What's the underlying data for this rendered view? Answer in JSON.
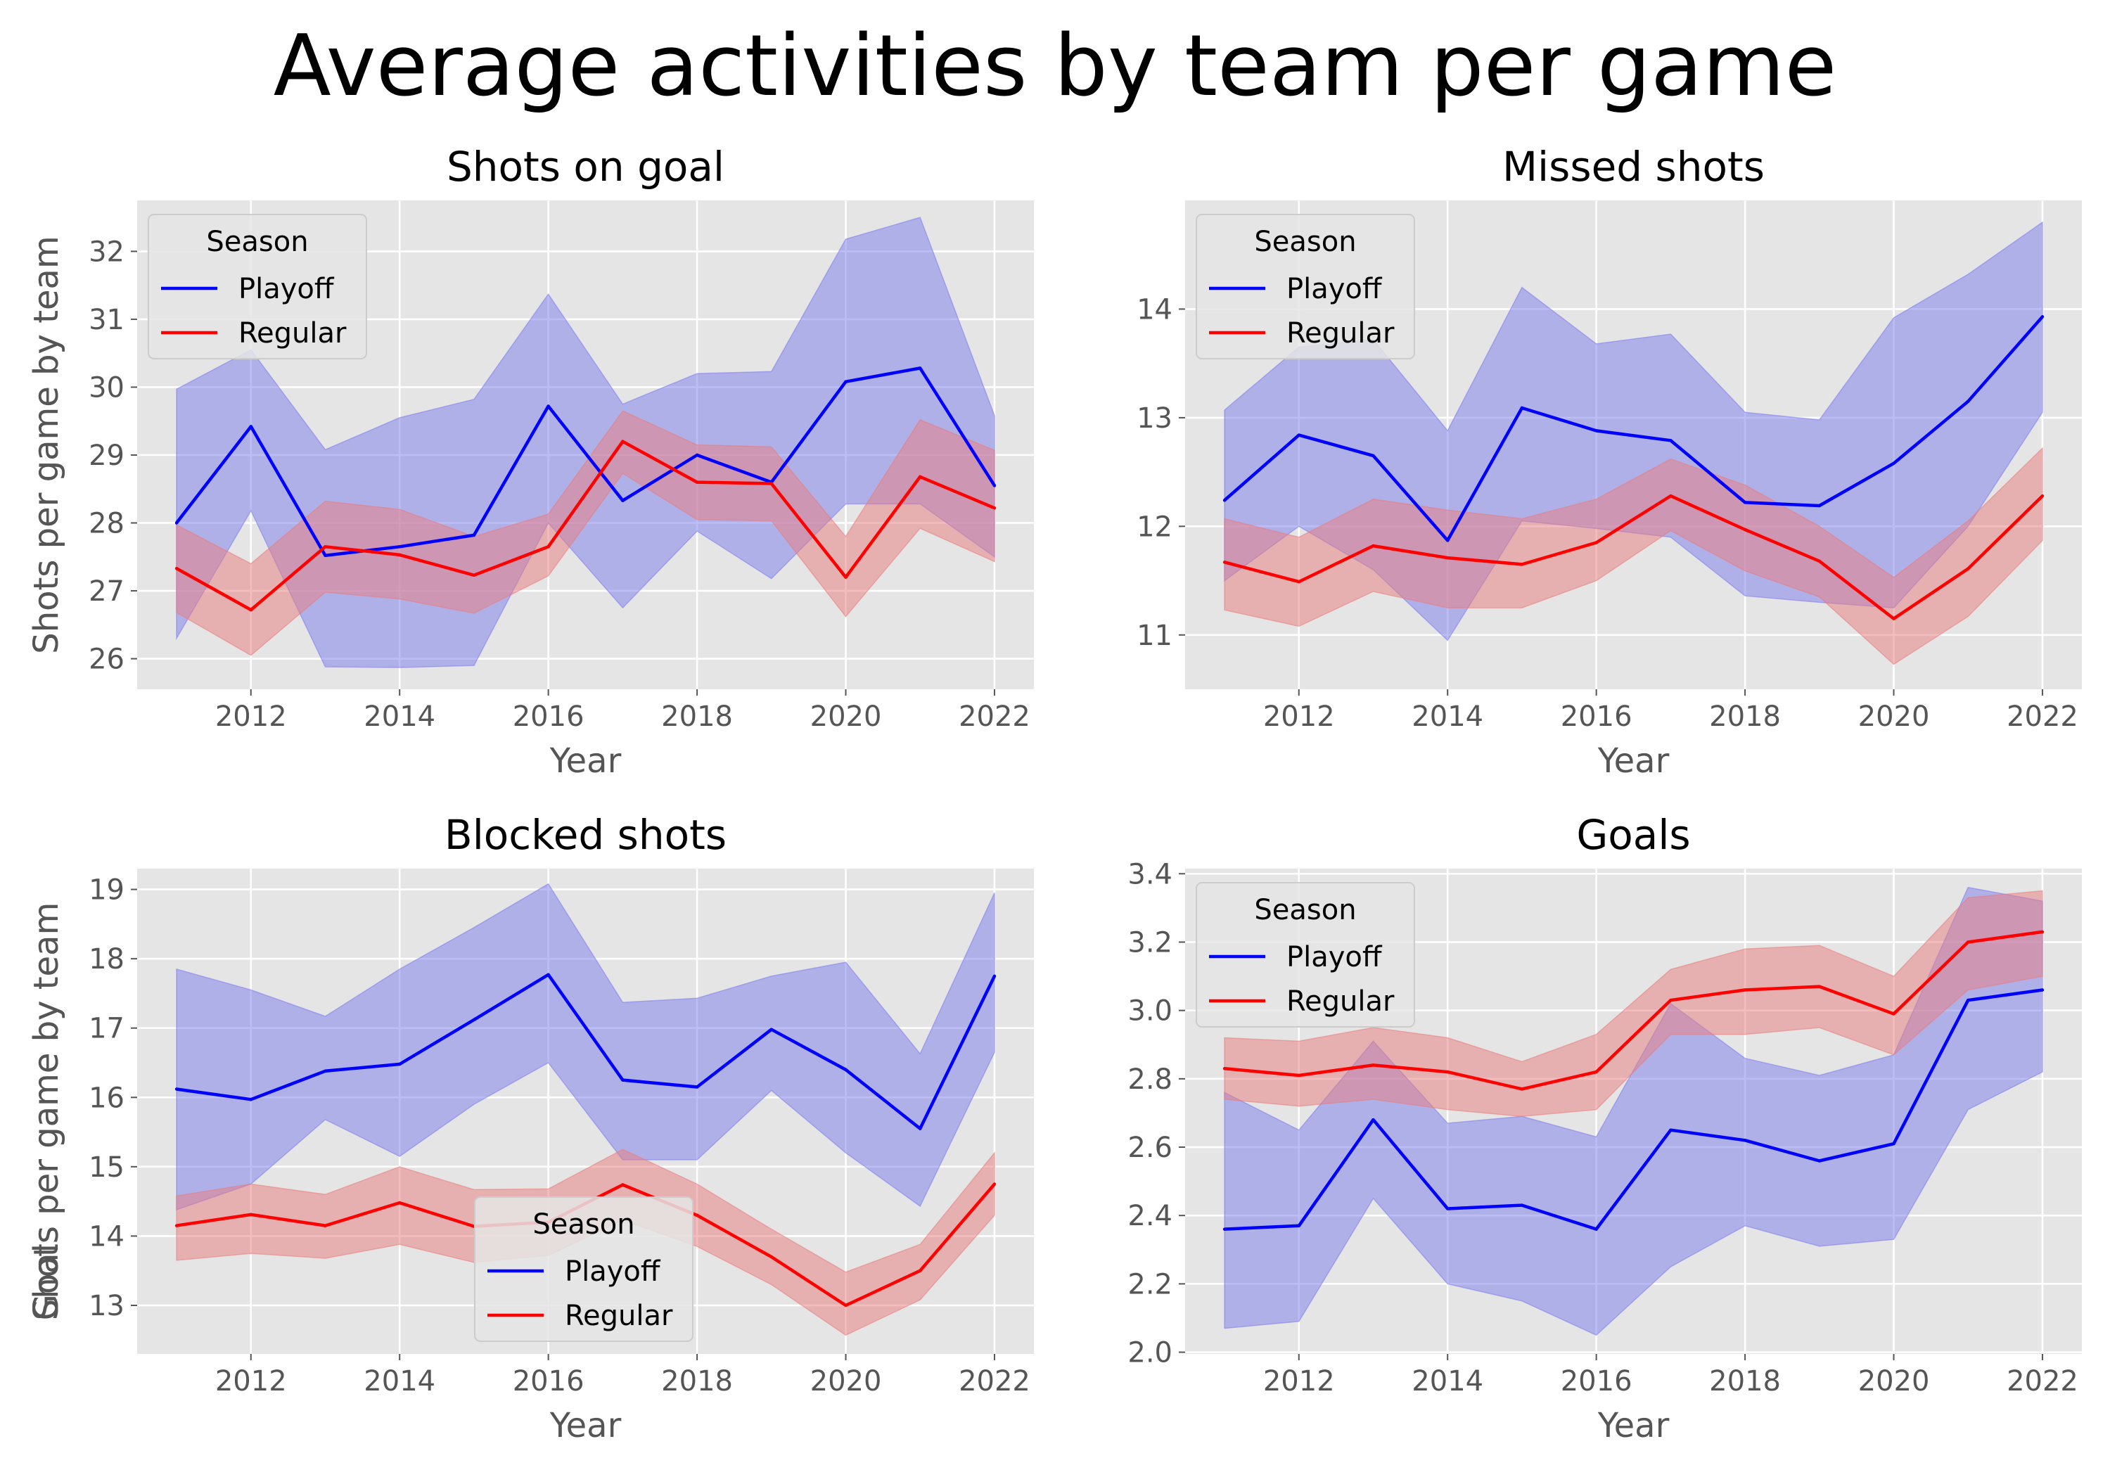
{
  "figure": {
    "title": "Average activities by team per game"
  },
  "colors": {
    "plot_bg": "#e5e5e5",
    "grid": "#ffffff",
    "playoff_line": "#0000ff",
    "playoff_band": "#7b7bee",
    "regular_line": "#ff0000",
    "regular_band": "#e97b7b"
  },
  "chart_data": [
    {
      "type": "line",
      "title": "Shots on goal",
      "xlabel": "Year",
      "ylabel": "Shots per game by team",
      "x": [
        2011,
        2012,
        2013,
        2014,
        2015,
        2016,
        2017,
        2018,
        2019,
        2020,
        2021,
        2022
      ],
      "xlim": [
        2010.47,
        2022.53
      ],
      "ylim": [
        25.55,
        32.75
      ],
      "xticks": [
        2012,
        2014,
        2016,
        2018,
        2020,
        2022
      ],
      "yticks": [
        26,
        27,
        28,
        29,
        30,
        31,
        32
      ],
      "grid": true,
      "legend": {
        "title": "Season",
        "loc": "upper left"
      },
      "series": [
        {
          "name": "Playoff",
          "color": "#0000ff",
          "values": [
            28.0,
            29.42,
            27.52,
            27.65,
            27.82,
            29.72,
            28.33,
            29.0,
            28.6,
            30.08,
            30.28,
            28.55
          ],
          "lower": [
            26.3,
            28.18,
            25.88,
            25.87,
            25.9,
            28.0,
            26.75,
            27.88,
            27.18,
            28.28,
            28.28,
            27.5
          ],
          "upper": [
            29.97,
            30.55,
            29.08,
            29.55,
            29.82,
            31.37,
            29.75,
            30.2,
            30.23,
            32.18,
            32.5,
            29.58
          ]
        },
        {
          "name": "Regular",
          "color": "#ff0000",
          "values": [
            27.33,
            26.72,
            27.65,
            27.53,
            27.23,
            27.65,
            29.2,
            28.6,
            28.58,
            27.2,
            28.68,
            28.22
          ],
          "lower": [
            26.68,
            26.05,
            26.98,
            26.88,
            26.67,
            27.22,
            28.73,
            28.05,
            28.03,
            26.62,
            27.92,
            27.43
          ],
          "upper": [
            27.97,
            27.4,
            28.32,
            28.2,
            27.8,
            28.13,
            29.65,
            29.15,
            29.12,
            27.8,
            29.52,
            29.07
          ]
        }
      ]
    },
    {
      "type": "line",
      "title": "Missed shots",
      "xlabel": "Year",
      "ylabel": "Shots per game by team",
      "x": [
        2011,
        2012,
        2013,
        2014,
        2015,
        2016,
        2017,
        2018,
        2019,
        2020,
        2021,
        2022
      ],
      "xlim": [
        2010.47,
        2022.53
      ],
      "ylim": [
        10.5,
        15.0
      ],
      "xticks": [
        2012,
        2014,
        2016,
        2018,
        2020,
        2022
      ],
      "yticks": [
        11,
        12,
        13,
        14
      ],
      "grid": true,
      "legend": {
        "title": "Season",
        "loc": "upper left"
      },
      "series": [
        {
          "name": "Playoff",
          "color": "#0000ff",
          "values": [
            12.24,
            12.84,
            12.65,
            11.87,
            13.09,
            12.88,
            12.79,
            12.22,
            12.19,
            12.58,
            13.15,
            13.93
          ],
          "lower": [
            11.5,
            12.0,
            11.6,
            10.95,
            12.05,
            11.98,
            11.9,
            11.36,
            11.3,
            11.25,
            12.0,
            13.05
          ],
          "upper": [
            13.07,
            13.65,
            13.72,
            12.88,
            14.2,
            13.68,
            13.77,
            13.05,
            12.98,
            13.92,
            14.32,
            14.8
          ]
        },
        {
          "name": "Regular",
          "color": "#ff0000",
          "values": [
            11.67,
            11.49,
            11.82,
            11.71,
            11.65,
            11.85,
            12.28,
            11.97,
            11.68,
            11.15,
            11.61,
            12.28
          ],
          "lower": [
            11.23,
            11.08,
            11.4,
            11.25,
            11.25,
            11.5,
            11.96,
            11.59,
            11.35,
            10.73,
            11.17,
            11.87
          ],
          "upper": [
            12.07,
            11.9,
            12.25,
            12.15,
            12.07,
            12.25,
            12.62,
            12.38,
            12.0,
            11.53,
            12.05,
            12.72
          ]
        }
      ]
    },
    {
      "type": "line",
      "title": "Blocked shots",
      "xlabel": "Year",
      "ylabel": "Shots per game by team",
      "x": [
        2011,
        2012,
        2013,
        2014,
        2015,
        2016,
        2017,
        2018,
        2019,
        2020,
        2021,
        2022
      ],
      "xlim": [
        2010.47,
        2022.53
      ],
      "ylim": [
        12.3,
        19.3
      ],
      "xticks": [
        2012,
        2014,
        2016,
        2018,
        2020,
        2022
      ],
      "yticks": [
        13,
        14,
        15,
        16,
        17,
        18,
        19
      ],
      "grid": true,
      "legend": {
        "title": "Season",
        "loc": "lower center"
      },
      "series": [
        {
          "name": "Playoff",
          "color": "#0000ff",
          "values": [
            16.12,
            15.97,
            16.38,
            16.48,
            17.12,
            17.77,
            16.25,
            16.15,
            16.98,
            16.4,
            15.55,
            17.75
          ],
          "lower": [
            14.38,
            14.75,
            15.68,
            15.15,
            15.9,
            16.5,
            15.1,
            15.1,
            16.1,
            15.2,
            14.43,
            16.65
          ],
          "upper": [
            17.85,
            17.55,
            17.17,
            17.85,
            18.45,
            19.08,
            17.37,
            17.43,
            17.75,
            17.95,
            16.63,
            18.95
          ]
        },
        {
          "name": "Regular",
          "color": "#ff0000",
          "values": [
            14.15,
            14.31,
            14.15,
            14.48,
            14.14,
            14.2,
            14.74,
            14.3,
            13.7,
            13.0,
            13.5,
            14.75
          ],
          "lower": [
            13.65,
            13.75,
            13.68,
            13.88,
            13.62,
            13.72,
            14.23,
            13.85,
            13.3,
            12.57,
            13.08,
            14.3
          ],
          "upper": [
            14.58,
            14.75,
            14.6,
            15.0,
            14.67,
            14.68,
            15.25,
            14.75,
            14.1,
            13.48,
            13.88,
            15.2
          ]
        }
      ]
    },
    {
      "type": "line",
      "title": "Goals",
      "xlabel": "Year",
      "ylabel": "Goals per game by team",
      "x": [
        2011,
        2012,
        2013,
        2014,
        2015,
        2016,
        2017,
        2018,
        2019,
        2020,
        2021,
        2022
      ],
      "xlim": [
        2010.47,
        2022.53
      ],
      "ylim": [
        1.995,
        3.415
      ],
      "xticks": [
        2012,
        2014,
        2016,
        2018,
        2020,
        2022
      ],
      "yticks": [
        "2.0",
        "2.2",
        "2.4",
        "2.6",
        "2.8",
        "3.0",
        "3.2",
        "3.4"
      ],
      "grid": true,
      "legend": {
        "title": "Season",
        "loc": "upper left"
      },
      "series": [
        {
          "name": "Playoff",
          "color": "#0000ff",
          "values": [
            2.36,
            2.37,
            2.68,
            2.42,
            2.43,
            2.36,
            2.65,
            2.62,
            2.56,
            2.61,
            3.03,
            3.06
          ],
          "lower": [
            2.07,
            2.09,
            2.45,
            2.2,
            2.15,
            2.05,
            2.25,
            2.37,
            2.31,
            2.33,
            2.71,
            2.82
          ],
          "upper": [
            2.76,
            2.65,
            2.91,
            2.67,
            2.69,
            2.63,
            3.02,
            2.86,
            2.81,
            2.87,
            3.36,
            3.32
          ]
        },
        {
          "name": "Regular",
          "color": "#ff0000",
          "values": [
            2.83,
            2.81,
            2.84,
            2.82,
            2.77,
            2.82,
            3.03,
            3.06,
            3.07,
            2.99,
            3.2,
            3.23
          ],
          "lower": [
            2.74,
            2.72,
            2.74,
            2.71,
            2.69,
            2.71,
            2.93,
            2.93,
            2.95,
            2.87,
            3.06,
            3.1
          ],
          "upper": [
            2.92,
            2.91,
            2.95,
            2.92,
            2.85,
            2.93,
            3.12,
            3.18,
            3.19,
            3.1,
            3.33,
            3.35
          ]
        }
      ]
    }
  ]
}
